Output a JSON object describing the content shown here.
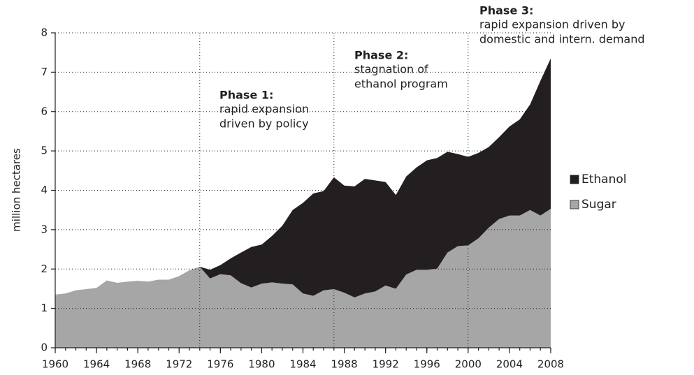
{
  "chart_data": {
    "type": "stacked_area",
    "y_label": "million hectares",
    "x": [
      1960,
      1961,
      1962,
      1963,
      1964,
      1965,
      1966,
      1967,
      1968,
      1969,
      1970,
      1971,
      1972,
      1973,
      1974,
      1975,
      1976,
      1977,
      1978,
      1979,
      1980,
      1981,
      1982,
      1983,
      1984,
      1985,
      1986,
      1987,
      1988,
      1989,
      1990,
      1991,
      1992,
      1993,
      1994,
      1995,
      1996,
      1997,
      1998,
      1999,
      2000,
      2001,
      2002,
      2003,
      2004,
      2005,
      2006,
      2007,
      2008
    ],
    "series": [
      {
        "name": "Sugar",
        "color": "#a6a6a6",
        "values": [
          1.35,
          1.38,
          1.46,
          1.49,
          1.52,
          1.71,
          1.65,
          1.68,
          1.7,
          1.68,
          1.73,
          1.73,
          1.82,
          1.97,
          2.06,
          1.76,
          1.87,
          1.84,
          1.64,
          1.53,
          1.63,
          1.66,
          1.63,
          1.61,
          1.38,
          1.32,
          1.46,
          1.49,
          1.4,
          1.28,
          1.38,
          1.43,
          1.58,
          1.5,
          1.86,
          1.98,
          1.98,
          2.01,
          2.42,
          2.58,
          2.6,
          2.78,
          3.05,
          3.27,
          3.36,
          3.36,
          3.5,
          3.36,
          3.53
        ]
      },
      {
        "name": "Ethanol",
        "color": "#231f20",
        "values": [
          0,
          0,
          0,
          0,
          0,
          0,
          0,
          0,
          0,
          0,
          0,
          0,
          0,
          0,
          0,
          0.22,
          0.23,
          0.43,
          0.78,
          1.03,
          0.99,
          1.18,
          1.47,
          1.89,
          2.3,
          2.6,
          2.52,
          2.84,
          2.72,
          2.82,
          2.91,
          2.82,
          2.63,
          2.38,
          2.49,
          2.6,
          2.78,
          2.81,
          2.56,
          2.34,
          2.25,
          2.17,
          2.05,
          2.08,
          2.26,
          2.44,
          2.68,
          3.42,
          3.82
        ]
      }
    ],
    "xlim": [
      1960,
      2008
    ],
    "xticks": [
      1960,
      1964,
      1968,
      1972,
      1976,
      1980,
      1984,
      1988,
      1992,
      1996,
      2000,
      2004,
      2008
    ],
    "ylim": [
      0,
      8
    ],
    "yticks": [
      0,
      1,
      2,
      3,
      4,
      5,
      6,
      7,
      8
    ],
    "grid": true,
    "legend": "right",
    "phase_lines": [
      1974,
      1987,
      2000
    ],
    "annotations": [
      {
        "title": "Phase 1:",
        "lines": [
          "rapid expansion",
          "driven by policy"
        ]
      },
      {
        "title": "Phase 2:",
        "lines": [
          "stagnation of",
          "ethanol program"
        ]
      },
      {
        "title": "Phase 3:",
        "lines": [
          "rapid expansion driven by",
          "domestic and intern. demand"
        ]
      }
    ]
  }
}
